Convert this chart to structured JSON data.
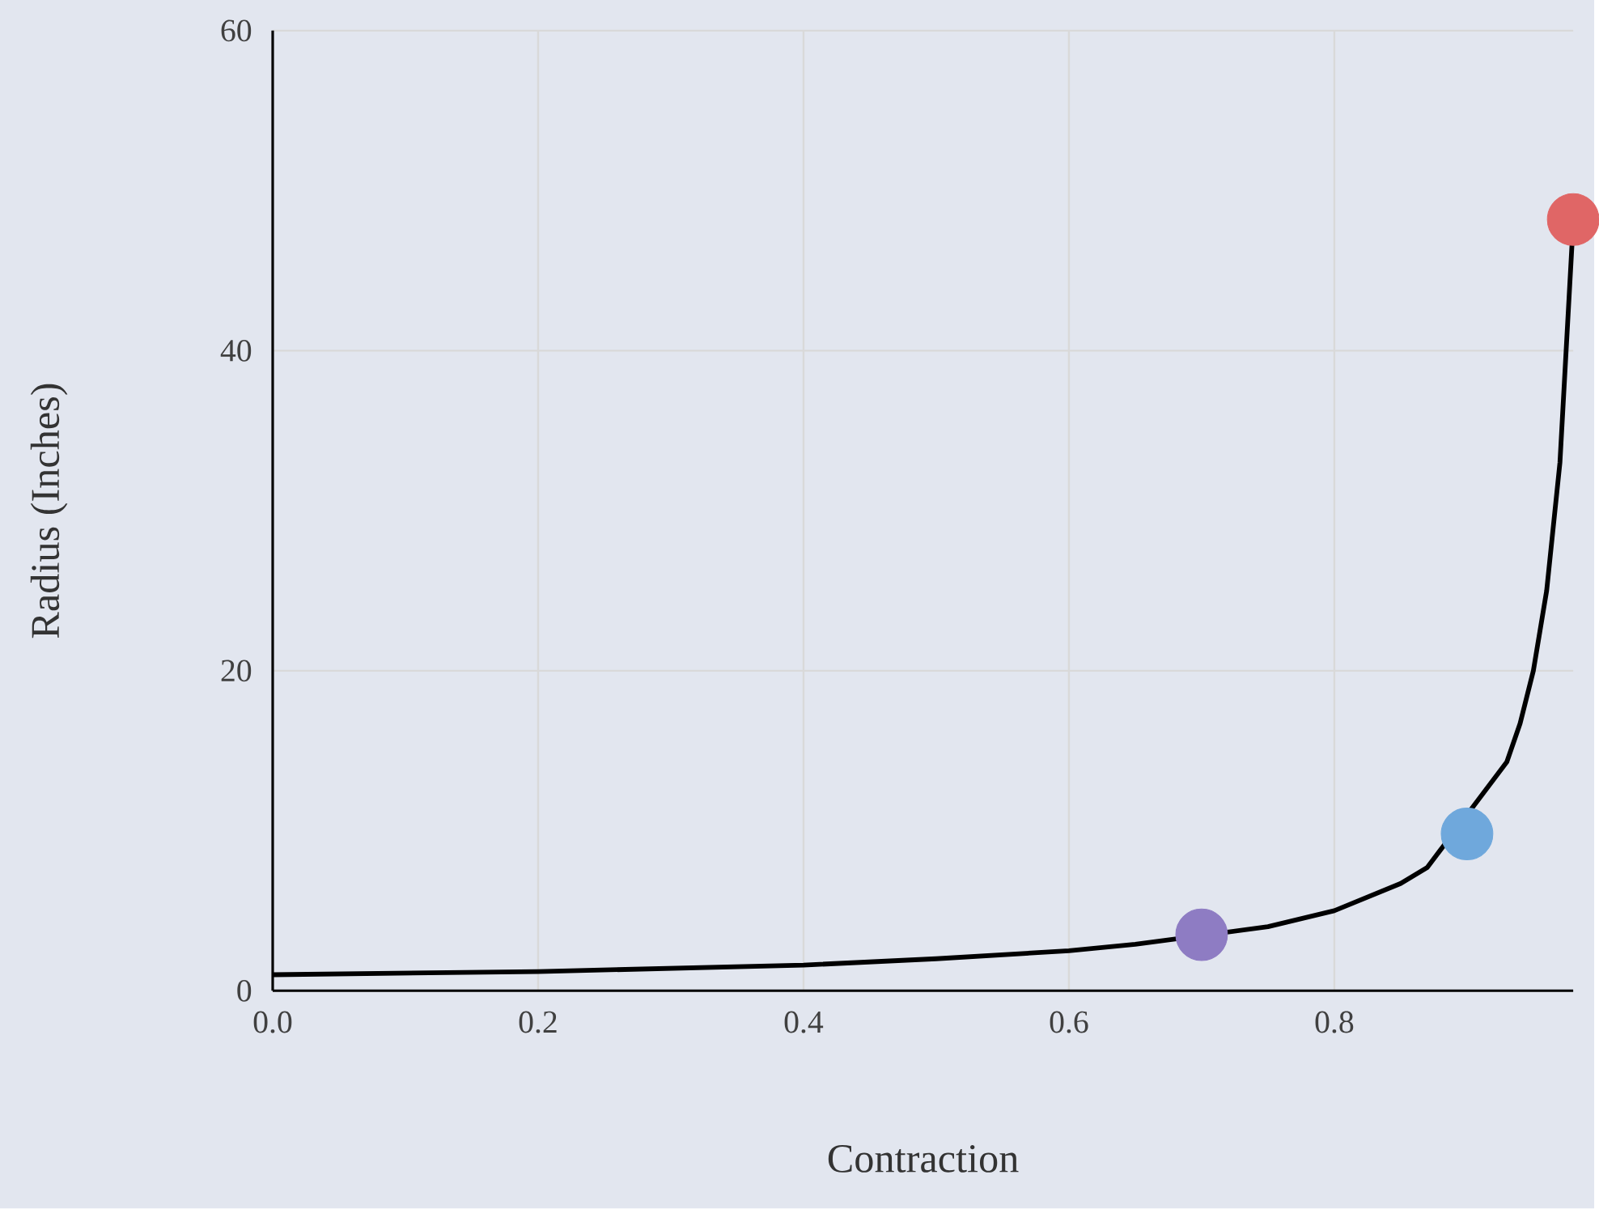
{
  "chart_data": {
    "type": "line",
    "xlabel": "Contraction",
    "ylabel": "Radius (Inches)",
    "xlim": [
      0,
      0.98
    ],
    "ylim": [
      0,
      60
    ],
    "xticks": [
      {
        "value": 0,
        "label": "0.0"
      },
      0.2,
      0.4,
      0.6,
      0.8
    ],
    "yticks": [
      0,
      20,
      40,
      60
    ],
    "grid": true,
    "series": [
      {
        "color": "#000000",
        "marker": "none",
        "x": [
          0,
          0.2,
          0.4,
          0.5,
          0.6,
          0.65,
          0.75,
          0.8,
          0.85,
          0.87,
          0.93,
          0.94,
          0.95,
          0.96,
          0.97,
          0.98
        ],
        "values": [
          1,
          1.2,
          1.6,
          2.0,
          2.5,
          2.9,
          4.0,
          5.0,
          6.7,
          7.7,
          14.3,
          16.7,
          20,
          25,
          33,
          48
        ]
      },
      {
        "type": "scatter",
        "color": "#8e7cc3",
        "marker": "circle",
        "x": [
          0.7
        ],
        "values": [
          3.5
        ]
      },
      {
        "type": "scatter",
        "color": "#6fa8dc",
        "marker": "circle",
        "x": [
          0.9
        ],
        "values": [
          9.8
        ]
      },
      {
        "type": "scatter",
        "color": "#e06666",
        "marker": "circle",
        "x": [
          0.98
        ],
        "values": [
          48.2
        ]
      }
    ]
  }
}
